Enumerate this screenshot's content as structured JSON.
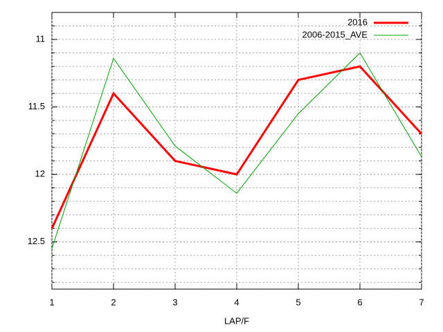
{
  "chart_data": {
    "type": "line",
    "x": [
      1,
      2,
      3,
      4,
      5,
      6,
      7
    ],
    "xlim": [
      1,
      7
    ],
    "xticks": [
      1,
      2,
      3,
      4,
      5,
      6,
      7
    ],
    "ylim": [
      10.8,
      12.85
    ],
    "y_reversed": true,
    "yticks": [
      11,
      11.5,
      12,
      12.5
    ],
    "xlabel": "LAP/F",
    "grid": true,
    "legend": "top-right",
    "series": [
      {
        "name": "2016",
        "color": "#ff0000",
        "width": 3,
        "values": [
          12.4,
          11.4,
          11.9,
          12.0,
          11.3,
          11.2,
          11.7
        ]
      },
      {
        "name": "2006-2015_AVE",
        "color": "#00a000",
        "width": 1,
        "values": [
          12.55,
          11.14,
          11.79,
          12.14,
          11.55,
          11.1,
          11.87
        ]
      }
    ]
  }
}
